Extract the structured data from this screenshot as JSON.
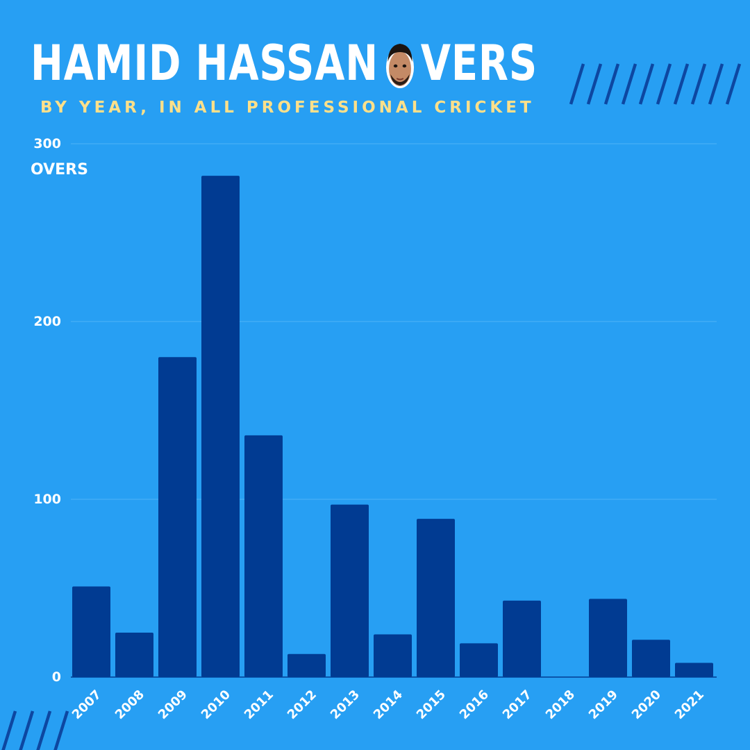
{
  "title_left": "HAMID HASSAN",
  "title_right": "VERS",
  "subtitle": "BY YEAR, IN ALL PROFESSIONAL CRICKET",
  "colors": {
    "background": "#279ff3",
    "bar": "#013b92",
    "title": "#ffffff",
    "subtitle": "#ffe08a",
    "gridline": "#4fb3f7",
    "deco": "#0d47a1"
  },
  "chart_data": {
    "type": "bar",
    "title": "HAMID HASSAN OVERS",
    "subtitle": "BY YEAR, IN ALL PROFESSIONAL CRICKET",
    "xlabel": "",
    "ylabel": "OVERS",
    "categories": [
      "2007",
      "2008",
      "2009",
      "2010",
      "2011",
      "2012",
      "2013",
      "2014",
      "2015",
      "2016",
      "2017",
      "2018",
      "2019",
      "2020",
      "2021"
    ],
    "values": [
      51,
      25,
      180,
      282,
      136,
      13,
      97,
      24,
      89,
      19,
      43,
      0,
      44,
      21,
      8
    ],
    "ylim": [
      0,
      300
    ],
    "yticks": [
      0,
      100,
      200,
      300
    ],
    "grid": true,
    "legend": "none"
  }
}
